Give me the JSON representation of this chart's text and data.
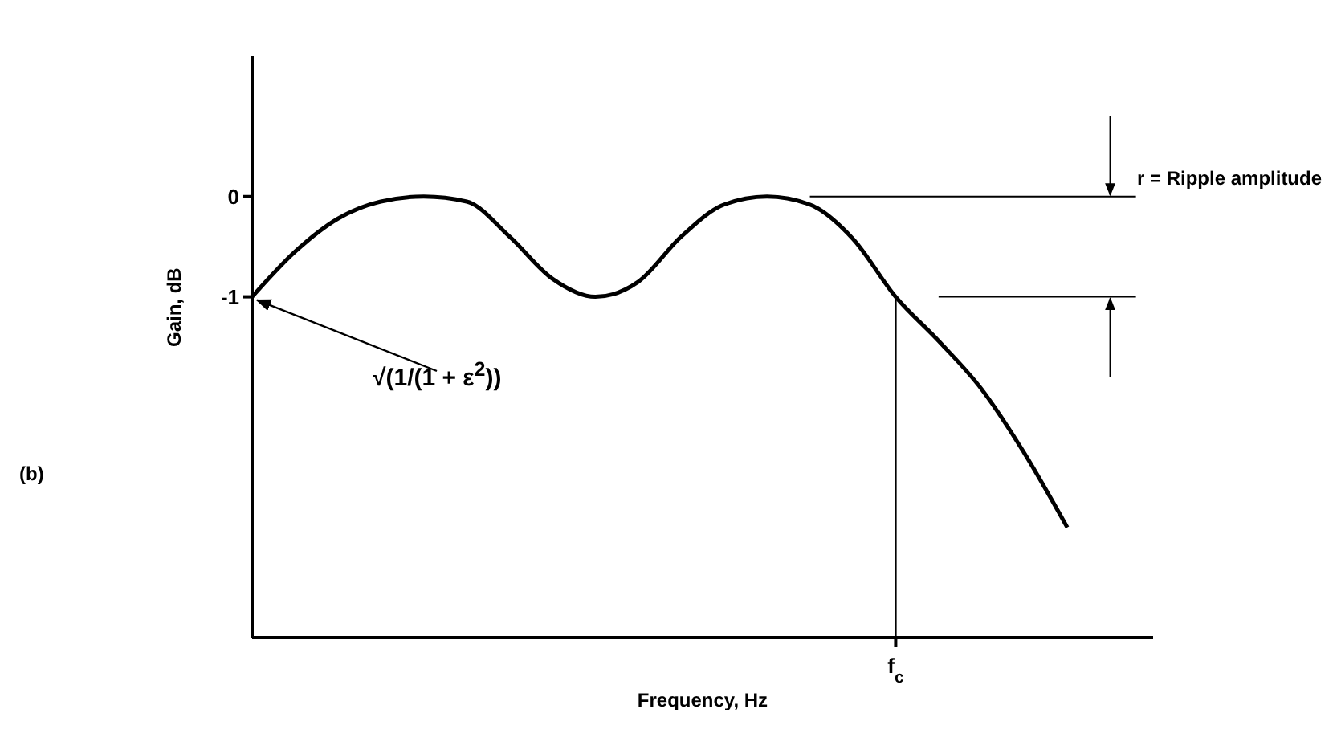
{
  "chart_data": {
    "type": "line",
    "xlabel": "Frequency, Hz",
    "ylabel": "Gain, dB",
    "categories": [
      null,
      null,
      null,
      null,
      null,
      null,
      null,
      null,
      null,
      null,
      null,
      null,
      null,
      null,
      null,
      "f$_{c}$",
      null,
      null,
      null,
      null,
      null
    ],
    "ylim": [
      -4.4,
      1.4
    ],
    "yticks": [
      -1,
      0
    ],
    "marker": "none",
    "series": [
      {
        "color": "#000000",
        "values": [
          -1,
          -0.55,
          -0.22,
          -0.05,
          0,
          -0.05,
          -0.4,
          -0.82,
          -1,
          -0.85,
          -0.4,
          -0.08,
          0,
          -0.08,
          -0.42,
          -1,
          -1.44,
          -1.92,
          -2.56,
          -3.3,
          null
        ]
      }
    ],
    "ref_lines": [
      {
        "axis": "x",
        "value": "f$_{c}$",
        "color": "#000000"
      }
    ],
    "annotations": [
      "(b)",
      "√(1/(1 + ε$^{2}$))",
      "r = Ripple amplitude"
    ]
  }
}
